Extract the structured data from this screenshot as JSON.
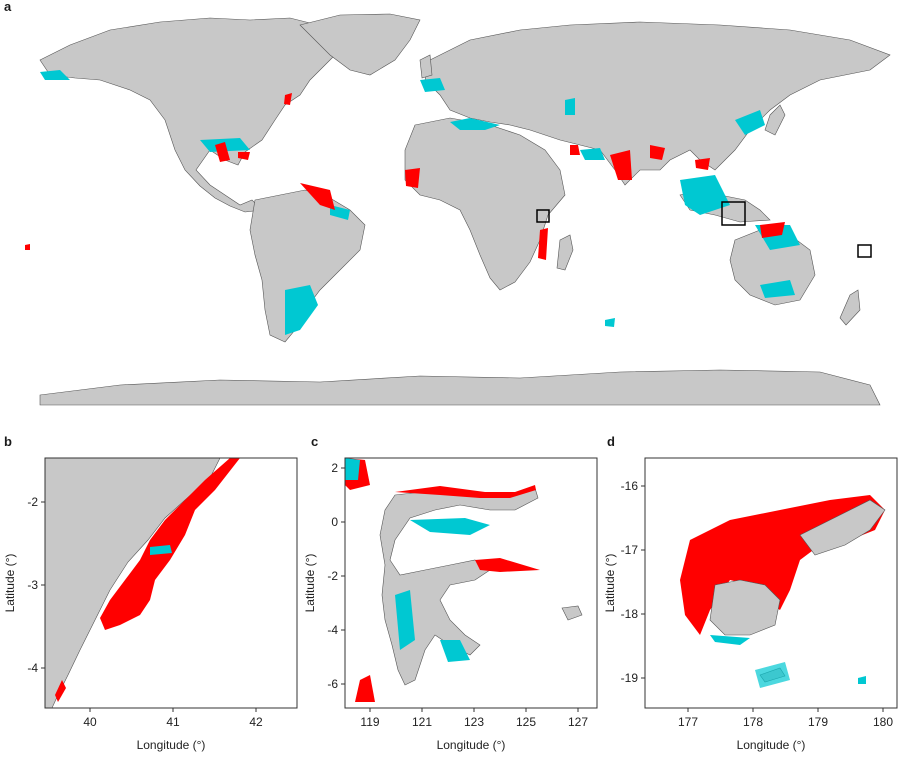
{
  "panels": {
    "a": {
      "letter": "a"
    },
    "b": {
      "letter": "b",
      "xlabel": "Longitude (°)",
      "ylabel": "Latitude (°)",
      "xticks": [
        "40",
        "41",
        "42"
      ],
      "yticks": [
        "-2",
        "-3",
        "-4"
      ]
    },
    "c": {
      "letter": "c",
      "xlabel": "Longitude (°)",
      "ylabel": "Latitude (°)",
      "xticks": [
        "119",
        "121",
        "123",
        "125",
        "127"
      ],
      "yticks": [
        "2",
        "0",
        "-2",
        "-4",
        "-6"
      ]
    },
    "d": {
      "letter": "d",
      "xlabel": "Longitude (°)",
      "ylabel": "Latitude (°)",
      "xticks": [
        "177",
        "178",
        "179",
        "180"
      ],
      "yticks": [
        "-16",
        "-17",
        "-18",
        "-19"
      ]
    }
  },
  "colors": {
    "land": "#c8c8c8",
    "outline": "#555555",
    "highlight_red": "#ff0000",
    "highlight_cyan": "#00c8d2",
    "ocean": "#ffffff"
  }
}
